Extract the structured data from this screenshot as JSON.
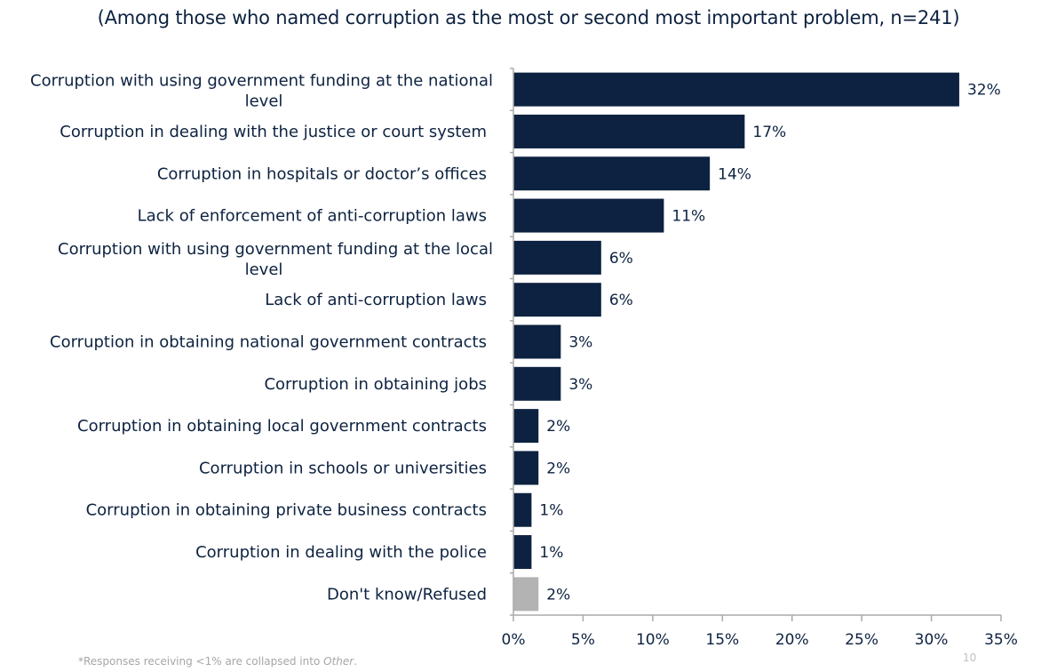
{
  "chart_data": {
    "type": "bar",
    "orientation": "horizontal",
    "title": "(Among those who named corruption as the most or second most important problem, n=241)",
    "categories": [
      [
        "Corruption with using government funding at the national",
        "level"
      ],
      [
        "Corruption in dealing with the justice or court system"
      ],
      [
        "Corruption in hospitals or doctor’s offices"
      ],
      [
        "Lack of enforcement of anti-corruption laws"
      ],
      [
        "Corruption with using government funding at the local",
        "level"
      ],
      [
        "Lack of anti-corruption laws"
      ],
      [
        "Corruption in obtaining national government contracts"
      ],
      [
        "Corruption in obtaining jobs"
      ],
      [
        "Corruption in obtaining local government contracts"
      ],
      [
        "Corruption in schools or universities"
      ],
      [
        "Corruption in obtaining private business contracts"
      ],
      [
        "Corruption in dealing with the police"
      ],
      [
        "Don't know/Refused"
      ]
    ],
    "values": [
      32,
      16.6,
      14.1,
      10.8,
      6.3,
      6.3,
      3.4,
      3.4,
      1.8,
      1.8,
      1.3,
      1.3,
      1.8
    ],
    "data_labels": [
      "32%",
      "17%",
      "14%",
      "11%",
      "6%",
      "6%",
      "3%",
      "3%",
      "2%",
      "2%",
      "1%",
      "1%",
      "2%"
    ],
    "bar_colors": [
      "#0d2240",
      "#0d2240",
      "#0d2240",
      "#0d2240",
      "#0d2240",
      "#0d2240",
      "#0d2240",
      "#0d2240",
      "#0d2240",
      "#0d2240",
      "#0d2240",
      "#0d2240",
      "#b3b3b3"
    ],
    "xlim": [
      0,
      35
    ],
    "xticks": [
      0,
      5,
      10,
      15,
      20,
      25,
      30,
      35
    ],
    "xtick_labels": [
      "0%",
      "5%",
      "10%",
      "15%",
      "20%",
      "25%",
      "30%",
      "35%"
    ],
    "xlabel": "",
    "ylabel": "",
    "grid": false,
    "legend": "none"
  },
  "footnote_prefix": "*Responses receiving <1% are collapsed into ",
  "footnote_italic": "Other",
  "footnote_suffix": ".",
  "page_number": "10"
}
